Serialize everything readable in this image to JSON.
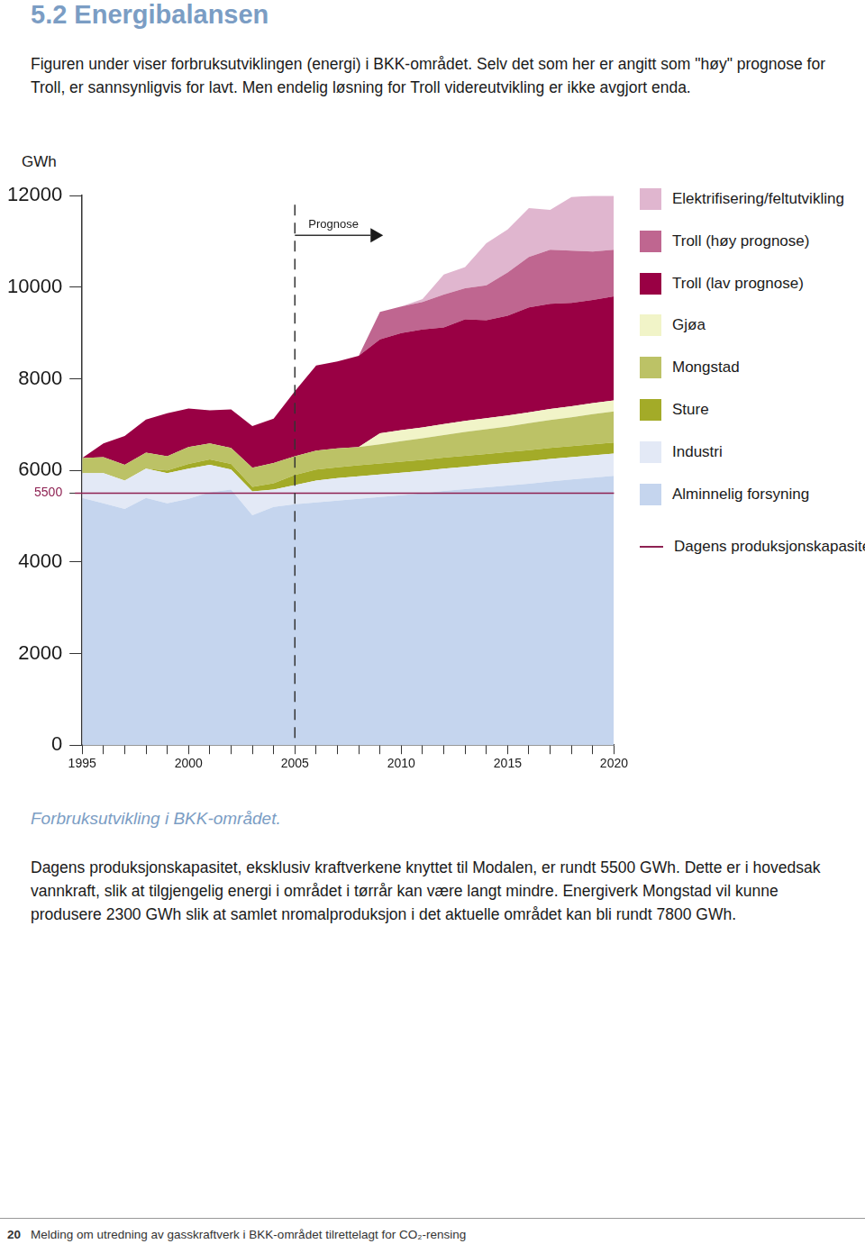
{
  "page": {
    "heading": "5.2 Energibalansen",
    "intro": "Figuren under viser forbruksutviklingen (energi) i BKK-området. Selv det som her er angitt som \"høy\" prognose for Troll, er sannsynligvis for lavt. Men endelig løsning for Troll videreutvikling er ikke avgjort enda.",
    "body": "Dagens produksjonskapasitet, eksklusiv kraftverkene knyttet til Modalen, er rundt 5500 GWh. Dette er i hovedsak vannkraft, slik at tilgjengelig energi i området i tørrår kan være langt mindre. Energiverk Mongstad vil kunne produsere 2300 GWh slik at samlet nromalproduksjon i det aktuelle området kan bli rundt 7800 GWh.",
    "page_number": "20",
    "footer": "Melding om utredning av gasskraftverk i BKK-området tilrettelagt for CO₂-rensing"
  },
  "chart_data": {
    "type": "area",
    "title": "Forbruksutvikling i BKK-området.",
    "y_label": "GWh",
    "stacked": true,
    "grid": false,
    "x": [
      1995,
      1996,
      1997,
      1998,
      1999,
      2000,
      2001,
      2002,
      2003,
      2004,
      2005,
      2006,
      2007,
      2008,
      2009,
      2010,
      2011,
      2012,
      2013,
      2014,
      2015,
      2016,
      2017,
      2018,
      2019,
      2020
    ],
    "xlim": [
      1995,
      2020
    ],
    "xticks": [
      1995,
      2000,
      2005,
      2010,
      2015,
      2020
    ],
    "ylim": [
      0,
      12000
    ],
    "yticks": [
      0,
      2000,
      4000,
      5500,
      6000,
      8000,
      10000,
      12000
    ],
    "annotations": [
      {
        "text": "Prognose",
        "x": 2005
      }
    ],
    "reference_line": {
      "name": "Dagens produksjonskapasitet",
      "value": 5500,
      "color": "#8e2152"
    },
    "series": [
      {
        "name": "Alminnelig forsyning",
        "color": "#c5d5ee",
        "values": [
          5400,
          5280,
          5160,
          5400,
          5280,
          5380,
          5520,
          5580,
          5020,
          5200,
          5260,
          5300,
          5340,
          5380,
          5420,
          5460,
          5500,
          5550,
          5590,
          5630,
          5670,
          5710,
          5760,
          5800,
          5840,
          5880
        ]
      },
      {
        "name": "Industri",
        "color": "#e3e9f6",
        "values": [
          540,
          660,
          620,
          640,
          660,
          660,
          600,
          440,
          520,
          380,
          420,
          480,
          490,
          490,
          490,
          490,
          490,
          490,
          490,
          490,
          490,
          490,
          490,
          490,
          490,
          490
        ]
      },
      {
        "name": "Sture",
        "color": "#a3ab28",
        "values": [
          0,
          0,
          0,
          0,
          60,
          100,
          120,
          120,
          100,
          140,
          220,
          240,
          240,
          240,
          240,
          240,
          240,
          240,
          240,
          240,
          240,
          240,
          240,
          240,
          240,
          240
        ]
      },
      {
        "name": "Mongstad",
        "color": "#bcc266",
        "values": [
          330,
          350,
          340,
          350,
          310,
          370,
          350,
          350,
          420,
          440,
          410,
          410,
          410,
          400,
          420,
          450,
          470,
          490,
          520,
          540,
          560,
          590,
          610,
          630,
          660,
          680
        ]
      },
      {
        "name": "Gjøa",
        "color": "#f1f4c8",
        "values": [
          0,
          0,
          0,
          0,
          0,
          0,
          0,
          0,
          0,
          0,
          0,
          0,
          0,
          0,
          240,
          240,
          240,
          240,
          240,
          240,
          240,
          240,
          240,
          240,
          240,
          240
        ]
      },
      {
        "name": "Troll (lav prognose)",
        "color": "#990044",
        "values": [
          0,
          300,
          630,
          720,
          940,
          840,
          720,
          840,
          910,
          970,
          1420,
          1860,
          1900,
          1990,
          2050,
          2120,
          2140,
          2110,
          2220,
          2140,
          2180,
          2290,
          2300,
          2260,
          2250,
          2270
        ]
      },
      {
        "name": "Troll (høy prognose)",
        "color": "#bf6690",
        "values": [
          0,
          0,
          0,
          0,
          0,
          0,
          0,
          0,
          0,
          0,
          0,
          0,
          0,
          0,
          600,
          580,
          600,
          720,
          680,
          760,
          940,
          1100,
          1180,
          1140,
          1060,
          1020
        ]
      },
      {
        "name": "Elektrifisering/feltutvikling",
        "color": "#e0b6cf",
        "values": [
          0,
          0,
          0,
          0,
          0,
          0,
          0,
          0,
          0,
          0,
          0,
          0,
          0,
          0,
          0,
          0,
          60,
          440,
          460,
          920,
          940,
          1070,
          870,
          1170,
          1220,
          1180
        ]
      }
    ]
  }
}
